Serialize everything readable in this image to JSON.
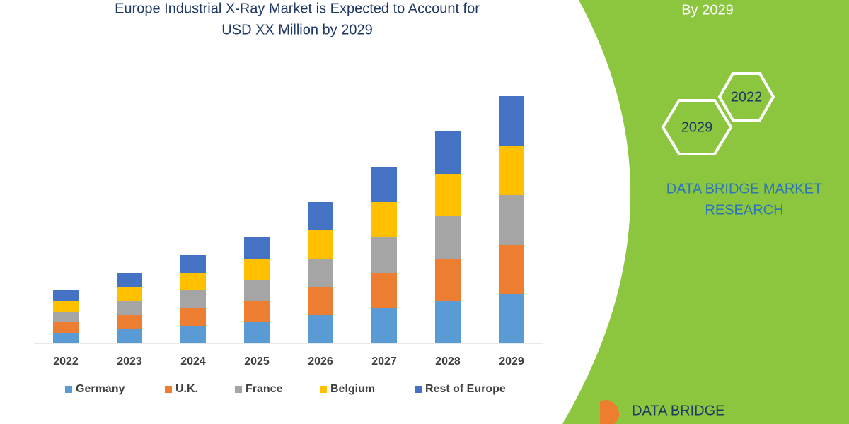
{
  "chart_data": {
    "type": "bar",
    "stacked": true,
    "title": [
      "Europe Industrial X-Ray Market is Expected to Account for",
      "USD XX Million by 2029"
    ],
    "categories": [
      "2022",
      "2023",
      "2024",
      "2025",
      "2026",
      "2027",
      "2028",
      "2029"
    ],
    "series": [
      {
        "name": "Germany",
        "color": "#5b9bd5",
        "values": [
          15,
          20,
          25,
          30,
          40,
          50,
          60,
          70
        ]
      },
      {
        "name": "U.K.",
        "color": "#ed7d31",
        "values": [
          15,
          20,
          25,
          30,
          40,
          50,
          60,
          70
        ]
      },
      {
        "name": "France",
        "color": "#a5a5a5",
        "values": [
          15,
          20,
          25,
          30,
          40,
          50,
          60,
          70
        ]
      },
      {
        "name": "Belgium",
        "color": "#ffc000",
        "values": [
          15,
          20,
          25,
          30,
          40,
          50,
          60,
          70
        ]
      },
      {
        "name": "Rest of Europe",
        "color": "#4472c4",
        "values": [
          15,
          20,
          25,
          30,
          40,
          50,
          60,
          70
        ]
      }
    ],
    "ylim": [
      0,
      350
    ],
    "grid": false,
    "legend": "bottom"
  },
  "banner": {
    "period": "By 2029",
    "hex_start": "2022",
    "hex_end": "2029",
    "brand": [
      "DATA BRIDGE MARKET",
      "RESEARCH"
    ],
    "logo": "DATA BRIDGE"
  }
}
